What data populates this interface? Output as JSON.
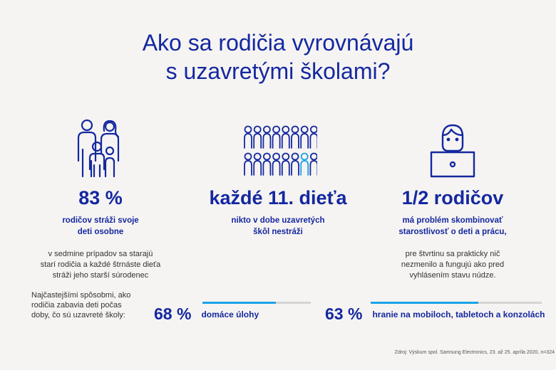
{
  "title": {
    "line1": "Ako sa rodičia vyrovnávajú",
    "line2": "s uzavretými školami?"
  },
  "columns": [
    {
      "big": "83 %",
      "sub_line1": "rodičov stráži svoje",
      "sub_line2": "deti osobne",
      "small_line1": "v sedmine prípadov sa starajú",
      "small_line2": "starí rodičia a každé štrnáste dieťa",
      "small_line3": "stráži jeho starší súrodenec",
      "icon": "family-icon"
    },
    {
      "big": "každé 11. dieťa",
      "sub_line1": "nikto v dobe uzavretých",
      "sub_line2": "škôl nestráži",
      "icon": "children-grid-icon"
    },
    {
      "big": "1/2 rodičov",
      "sub_line1": "má problém skombinovať",
      "sub_line2": "starostlivosť o deti a prácu,",
      "small_line1": "pre štvrtinu sa prakticky nič",
      "small_line2": "nezmenilo a fungujú ako pred",
      "small_line3": "vyhlásením stavu núdze.",
      "icon": "person-laptop-icon"
    }
  ],
  "intro": {
    "line1": "Najčastejšími spôsobmi, ako",
    "line2": "rodičia zabavia deti počas",
    "line3": "doby, čo sú uzavreté školy:"
  },
  "stats": [
    {
      "pct": "68 %",
      "label": "domáce úlohy",
      "value": 0.68
    },
    {
      "pct": "63 %",
      "label": "hranie na mobiloch, tabletoch a konzolách",
      "value": 0.63
    }
  ],
  "source": "Zdroj: Výskum spol. Samsung Electronics, 23. až 25. apríla 2020, n=324",
  "colors": {
    "brand": "#1428a0",
    "accent": "#1aa3e6",
    "background": "#f6f4f2"
  }
}
